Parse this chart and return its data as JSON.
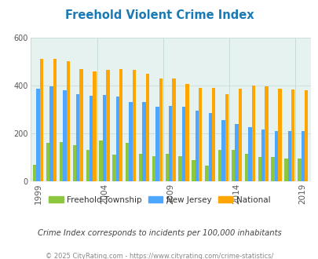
{
  "title": "Freehold Violent Crime Index",
  "years": [
    1999,
    2000,
    2001,
    2002,
    2003,
    2004,
    2005,
    2006,
    2007,
    2008,
    2009,
    2010,
    2011,
    2012,
    2013,
    2014,
    2015,
    2016,
    2017,
    2018,
    2019
  ],
  "freehold": [
    70,
    160,
    165,
    150,
    130,
    170,
    110,
    160,
    115,
    105,
    115,
    105,
    90,
    65,
    130,
    130,
    115,
    100,
    100,
    95,
    95
  ],
  "nj": [
    385,
    395,
    380,
    365,
    358,
    360,
    355,
    330,
    330,
    310,
    315,
    310,
    295,
    285,
    255,
    240,
    225,
    215,
    210,
    210,
    210
  ],
  "national": [
    510,
    510,
    500,
    470,
    460,
    465,
    470,
    465,
    450,
    430,
    430,
    405,
    390,
    390,
    365,
    385,
    400,
    395,
    385,
    382,
    380
  ],
  "color_freehold": "#8dc63f",
  "color_nj": "#4da6ff",
  "color_national": "#ffa500",
  "bg_color": "#e6f2f0",
  "ylim": [
    0,
    600
  ],
  "yticks": [
    0,
    200,
    400,
    600
  ],
  "xtick_years": [
    1999,
    2004,
    2009,
    2014,
    2019
  ],
  "subtitle": "Crime Index corresponds to incidents per 100,000 inhabitants",
  "footer": "© 2025 CityRating.com - https://www.cityrating.com/crime-statistics/",
  "legend_labels": [
    "Freehold Township",
    "New Jersey",
    "National"
  ],
  "title_color": "#1a7ab5",
  "subtitle_color": "#444444",
  "footer_color": "#888888",
  "grid_color": "#c8ddd8",
  "bar_width": 0.26
}
